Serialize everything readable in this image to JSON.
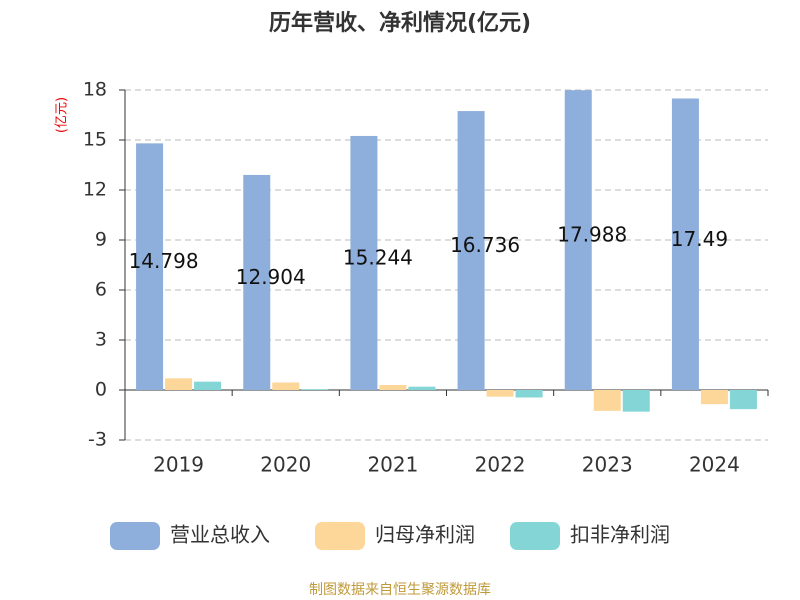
{
  "chart_data": {
    "type": "bar",
    "title": "历年营收、净利情况(亿元)",
    "y_label": "(亿元)",
    "categories": [
      "2019",
      "2020",
      "2021",
      "2022",
      "2023",
      "2024"
    ],
    "series": [
      {
        "name": "营业总收入",
        "color": "#8eaedb",
        "values": [
          14.798,
          12.904,
          15.244,
          16.736,
          17.988,
          17.49
        ]
      },
      {
        "name": "归母净利润",
        "color": "#fdd699",
        "values": [
          0.7,
          0.45,
          0.3,
          -0.4,
          -1.25,
          -0.85
        ]
      },
      {
        "name": "扣非净利润",
        "color": "#84d5d6",
        "values": [
          0.5,
          0.05,
          0.2,
          -0.45,
          -1.3,
          -1.15
        ]
      }
    ],
    "labeled_series": 0,
    "ylim": [
      -3,
      18
    ],
    "yticks": [
      -3,
      0,
      3,
      6,
      9,
      12,
      15,
      18
    ],
    "grid": true,
    "source": "制图数据来自恒生聚源数据库"
  }
}
